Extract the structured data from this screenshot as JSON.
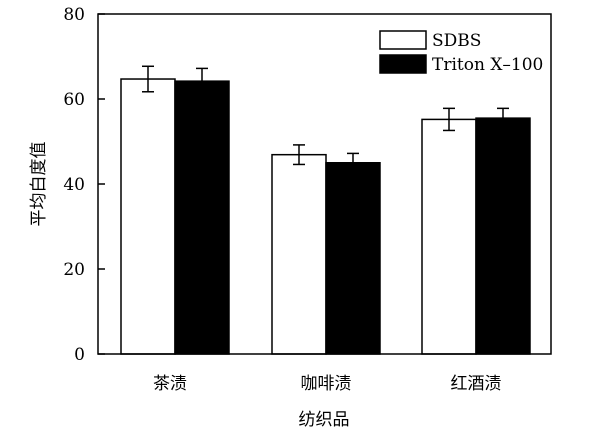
{
  "chart_data": {
    "type": "bar",
    "title": "",
    "xlabel": "纺织品",
    "ylabel": "平均白度值",
    "ylim": [
      0,
      80
    ],
    "yticks": [
      0,
      20,
      40,
      60,
      80
    ],
    "categories": [
      "茶渍",
      "咖啡渍",
      "红酒渍"
    ],
    "series": [
      {
        "name": "SDBS",
        "color": "#ffffff",
        "values": [
          64.7,
          46.9,
          55.2
        ],
        "errors": [
          3.0,
          2.3,
          2.6
        ]
      },
      {
        "name": "Triton X–100",
        "color": "#000000",
        "values": [
          64.2,
          45.0,
          55.5
        ],
        "errors": [
          3.0,
          2.2,
          2.3
        ]
      }
    ],
    "legend_position": "top-right",
    "grid": false
  }
}
